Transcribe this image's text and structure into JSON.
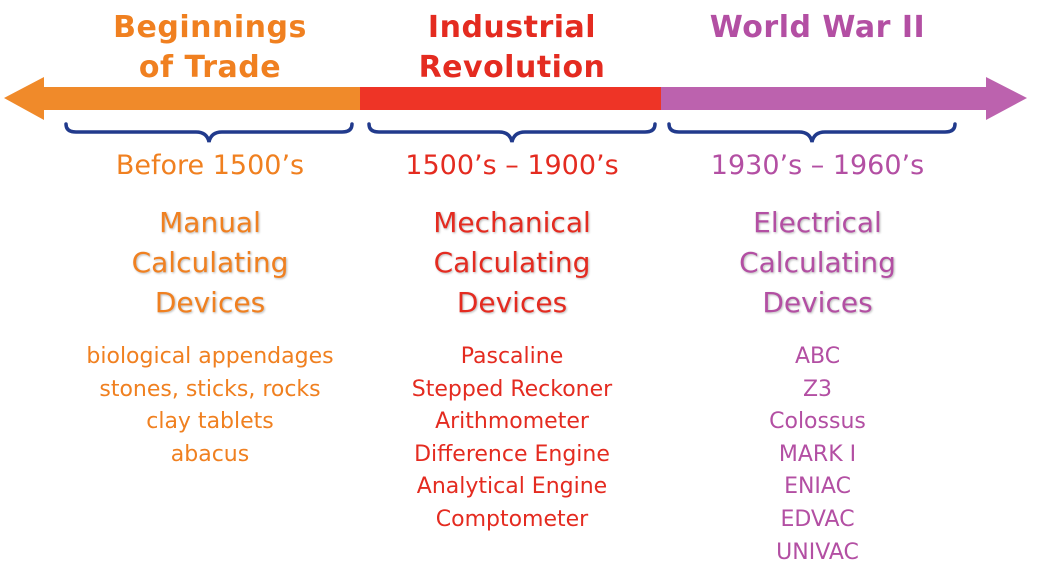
{
  "colors": {
    "orange": "#F08020",
    "red": "#E42B20",
    "purple": "#B34FA3"
  },
  "periods": [
    {
      "era": [
        "Beginnings",
        "of Trade"
      ],
      "range": "Before 1500’s",
      "category": [
        "Manual",
        "Calculating",
        "Devices"
      ],
      "devices": [
        "biological appendages",
        "stones, sticks, rocks",
        "clay tablets",
        "abacus"
      ]
    },
    {
      "era": [
        "Industrial",
        "Revolution"
      ],
      "range": "1500’s – 1900’s",
      "category": [
        "Mechanical",
        "Calculating",
        "Devices"
      ],
      "devices": [
        "Pascaline",
        "Stepped Reckoner",
        "Arithmometer",
        "Difference Engine",
        "Analytical Engine",
        "Comptometer"
      ]
    },
    {
      "era": [
        "World War II"
      ],
      "range": "1930’s – 1960’s",
      "category": [
        "Electrical",
        "Calculating",
        "Devices"
      ],
      "devices": [
        "ABC",
        "Z3",
        "Colossus",
        "MARK I",
        "ENIAC",
        "EDVAC",
        "UNIVAC"
      ]
    }
  ]
}
